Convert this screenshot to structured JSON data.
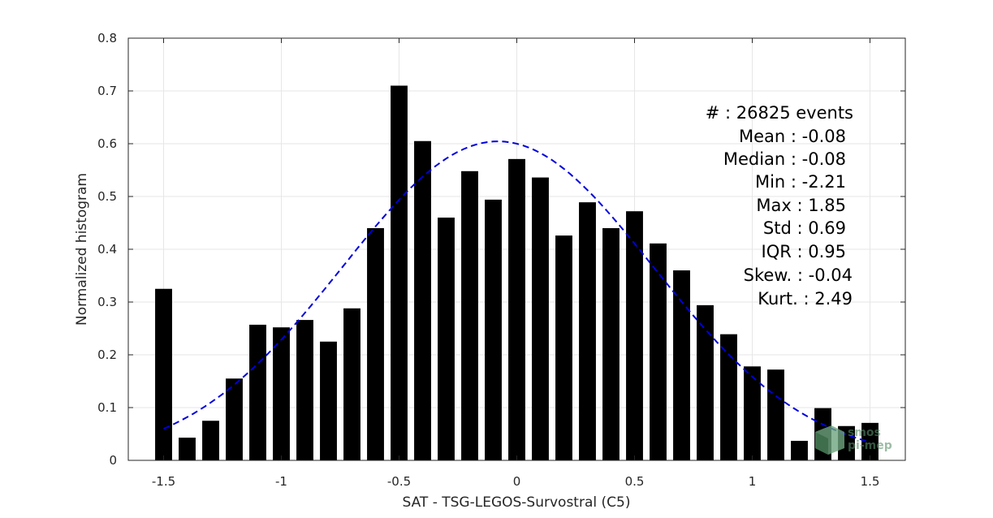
{
  "chart_data": {
    "type": "bar",
    "xlabel": "SAT - TSG-LEGOS-Survostral (C5)",
    "ylabel": "Normalized histogram",
    "xlim": [
      -1.65,
      1.65
    ],
    "ylim": [
      0,
      0.8
    ],
    "xticks": [
      "-1.5",
      "-1",
      "-0.5",
      "0",
      "0.5",
      "1",
      "1.5"
    ],
    "yticks": [
      "0",
      "0.1",
      "0.2",
      "0.3",
      "0.4",
      "0.5",
      "0.6",
      "0.7",
      "0.8"
    ],
    "grid": true,
    "bar_color": "#000000",
    "bins": [
      -1.5,
      -1.4,
      -1.3,
      -1.2,
      -1.1,
      -1.0,
      -0.9,
      -0.8,
      -0.7,
      -0.6,
      -0.5,
      -0.4,
      -0.3,
      -0.2,
      -0.1,
      0.0,
      0.1,
      0.2,
      0.3,
      0.4,
      0.5,
      0.6,
      0.7,
      0.8,
      0.9,
      1.0,
      1.1,
      1.2,
      1.3,
      1.4,
      1.5
    ],
    "values": [
      0.325,
      0.043,
      0.075,
      0.155,
      0.257,
      0.252,
      0.266,
      0.225,
      0.288,
      0.44,
      0.71,
      0.605,
      0.46,
      0.548,
      0.494,
      0.571,
      0.536,
      0.426,
      0.489,
      0.44,
      0.472,
      0.411,
      0.36,
      0.294,
      0.239,
      0.178,
      0.172,
      0.037,
      0.099,
      0.065,
      0.071
    ],
    "fit_curve": {
      "style": "dashed",
      "color": "#0000dd",
      "mean": -0.08,
      "std": 0.66,
      "x_range": [
        -1.5,
        1.5
      ],
      "scale": 1.0
    },
    "stats": {
      "count": "#  : 26825 events",
      "mean": "Mean : -0.08",
      "median": "Median : -0.08",
      "min": "Min : -2.21",
      "max": "Max : 1.85",
      "std": "Std : 0.69",
      "iqr": "IQR : 0.95",
      "skew": "Skew. : -0.04",
      "kurt": "Kurt. : 2.49"
    },
    "watermark": [
      "smos",
      "pi-mep"
    ]
  }
}
